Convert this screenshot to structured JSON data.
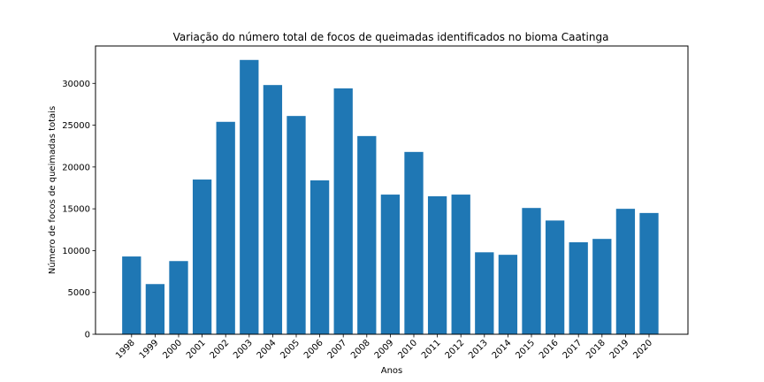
{
  "chart_data": {
    "type": "bar",
    "title": "Variação do número total de focos de queimadas identificados no bioma Caatinga",
    "xlabel": "Anos",
    "ylabel": "Número de focos de queimadas totais",
    "categories": [
      "1998",
      "1999",
      "2000",
      "2001",
      "2002",
      "2003",
      "2004",
      "2005",
      "2006",
      "2007",
      "2008",
      "2009",
      "2010",
      "2011",
      "2012",
      "2013",
      "2014",
      "2015",
      "2016",
      "2017",
      "2018",
      "2019",
      "2020"
    ],
    "values": [
      9300,
      6000,
      8750,
      18500,
      25400,
      32800,
      29800,
      26100,
      18400,
      29400,
      23700,
      16700,
      21800,
      16500,
      16700,
      9800,
      9500,
      15100,
      13600,
      11000,
      11400,
      15000,
      14500
    ],
    "ylim": [
      0,
      34470
    ],
    "yticks": [
      0,
      5000,
      10000,
      15000,
      20000,
      25000,
      30000
    ],
    "bar_color": "#1f77b4",
    "grid": false,
    "legend": "none"
  }
}
